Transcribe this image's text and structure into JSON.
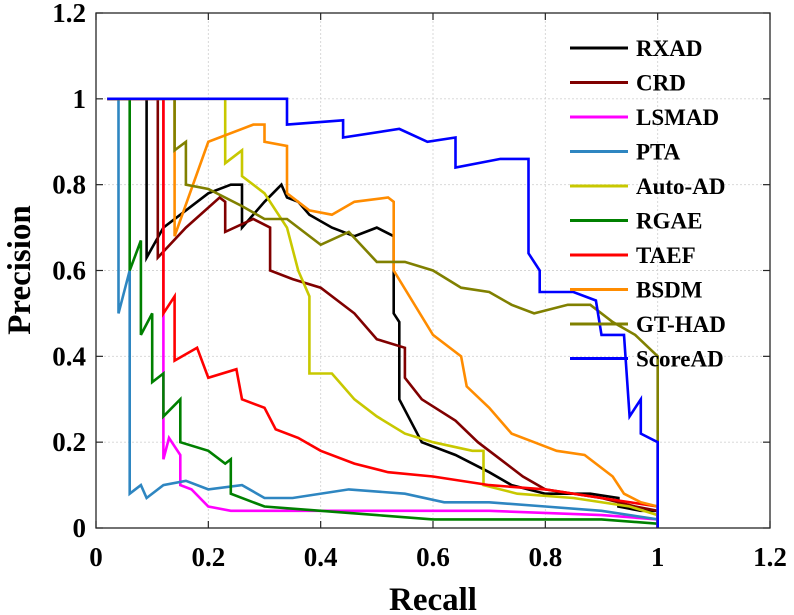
{
  "chart_data": {
    "type": "line",
    "title": "",
    "xlabel": "Recall",
    "ylabel": "Precision",
    "xlim": [
      0,
      1.2
    ],
    "ylim": [
      0,
      1.2
    ],
    "xticks": [
      "0",
      "0.2",
      "0.4",
      "0.6",
      "0.8",
      "1",
      "1.2"
    ],
    "yticks": [
      "0",
      "0.2",
      "0.4",
      "0.6",
      "0.8",
      "1",
      "1.2"
    ],
    "grid": true,
    "legend_position": "top-right",
    "series": [
      {
        "name": "RXAD",
        "color": "#000000",
        "points": [
          [
            0.02,
            1.0
          ],
          [
            0.09,
            1.0
          ],
          [
            0.09,
            0.63
          ],
          [
            0.12,
            0.7
          ],
          [
            0.2,
            0.78
          ],
          [
            0.24,
            0.8
          ],
          [
            0.26,
            0.8
          ],
          [
            0.26,
            0.7
          ],
          [
            0.3,
            0.76
          ],
          [
            0.33,
            0.8
          ],
          [
            0.34,
            0.77
          ],
          [
            0.36,
            0.76
          ],
          [
            0.38,
            0.73
          ],
          [
            0.42,
            0.7
          ],
          [
            0.46,
            0.68
          ],
          [
            0.5,
            0.7
          ],
          [
            0.53,
            0.68
          ],
          [
            0.53,
            0.5
          ],
          [
            0.54,
            0.48
          ],
          [
            0.54,
            0.3
          ],
          [
            0.56,
            0.25
          ],
          [
            0.58,
            0.2
          ],
          [
            0.64,
            0.17
          ],
          [
            0.7,
            0.13
          ],
          [
            0.74,
            0.1
          ],
          [
            0.8,
            0.08
          ],
          [
            0.88,
            0.08
          ],
          [
            0.93,
            0.07
          ],
          [
            0.93,
            0.05
          ],
          [
            0.97,
            0.04
          ],
          [
            1.0,
            0.04
          ],
          [
            1.0,
            0.0
          ]
        ]
      },
      {
        "name": "CRD",
        "color": "#800000",
        "points": [
          [
            0.02,
            1.0
          ],
          [
            0.11,
            1.0
          ],
          [
            0.11,
            0.63
          ],
          [
            0.16,
            0.7
          ],
          [
            0.22,
            0.77
          ],
          [
            0.23,
            0.76
          ],
          [
            0.23,
            0.69
          ],
          [
            0.28,
            0.72
          ],
          [
            0.31,
            0.7
          ],
          [
            0.31,
            0.6
          ],
          [
            0.35,
            0.58
          ],
          [
            0.4,
            0.56
          ],
          [
            0.46,
            0.5
          ],
          [
            0.5,
            0.44
          ],
          [
            0.55,
            0.42
          ],
          [
            0.55,
            0.35
          ],
          [
            0.58,
            0.3
          ],
          [
            0.64,
            0.25
          ],
          [
            0.68,
            0.2
          ],
          [
            0.72,
            0.16
          ],
          [
            0.76,
            0.12
          ],
          [
            0.8,
            0.09
          ],
          [
            0.9,
            0.07
          ],
          [
            0.96,
            0.05
          ],
          [
            1.0,
            0.04
          ],
          [
            1.0,
            0.0
          ]
        ]
      },
      {
        "name": "LSMAD",
        "color": "#ff00ff",
        "points": [
          [
            0.02,
            1.0
          ],
          [
            0.12,
            1.0
          ],
          [
            0.12,
            0.16
          ],
          [
            0.13,
            0.21
          ],
          [
            0.15,
            0.17
          ],
          [
            0.15,
            0.1
          ],
          [
            0.17,
            0.09
          ],
          [
            0.2,
            0.05
          ],
          [
            0.24,
            0.04
          ],
          [
            0.3,
            0.04
          ],
          [
            0.5,
            0.04
          ],
          [
            0.7,
            0.04
          ],
          [
            0.9,
            0.03
          ],
          [
            1.0,
            0.02
          ],
          [
            1.0,
            0.0
          ]
        ]
      },
      {
        "name": "PTA",
        "color": "#2e86c1",
        "points": [
          [
            0.02,
            1.0
          ],
          [
            0.04,
            1.0
          ],
          [
            0.04,
            0.5
          ],
          [
            0.06,
            0.6
          ],
          [
            0.06,
            0.08
          ],
          [
            0.08,
            0.1
          ],
          [
            0.09,
            0.07
          ],
          [
            0.12,
            0.1
          ],
          [
            0.16,
            0.11
          ],
          [
            0.2,
            0.09
          ],
          [
            0.26,
            0.1
          ],
          [
            0.3,
            0.07
          ],
          [
            0.35,
            0.07
          ],
          [
            0.45,
            0.09
          ],
          [
            0.55,
            0.08
          ],
          [
            0.62,
            0.06
          ],
          [
            0.7,
            0.06
          ],
          [
            0.8,
            0.05
          ],
          [
            0.9,
            0.04
          ],
          [
            1.0,
            0.02
          ],
          [
            1.0,
            0.0
          ]
        ]
      },
      {
        "name": "Auto-AD",
        "color": "#c8c800",
        "points": [
          [
            0.02,
            1.0
          ],
          [
            0.23,
            1.0
          ],
          [
            0.23,
            0.85
          ],
          [
            0.26,
            0.88
          ],
          [
            0.26,
            0.82
          ],
          [
            0.3,
            0.78
          ],
          [
            0.34,
            0.7
          ],
          [
            0.36,
            0.6
          ],
          [
            0.38,
            0.54
          ],
          [
            0.38,
            0.36
          ],
          [
            0.42,
            0.36
          ],
          [
            0.46,
            0.3
          ],
          [
            0.5,
            0.26
          ],
          [
            0.55,
            0.22
          ],
          [
            0.6,
            0.2
          ],
          [
            0.67,
            0.18
          ],
          [
            0.69,
            0.18
          ],
          [
            0.69,
            0.1
          ],
          [
            0.75,
            0.08
          ],
          [
            0.85,
            0.07
          ],
          [
            0.95,
            0.05
          ],
          [
            1.0,
            0.03
          ],
          [
            1.0,
            0.0
          ]
        ]
      },
      {
        "name": "RGAE",
        "color": "#008000",
        "points": [
          [
            0.02,
            1.0
          ],
          [
            0.06,
            1.0
          ],
          [
            0.06,
            0.6
          ],
          [
            0.08,
            0.67
          ],
          [
            0.08,
            0.45
          ],
          [
            0.1,
            0.5
          ],
          [
            0.1,
            0.34
          ],
          [
            0.12,
            0.36
          ],
          [
            0.12,
            0.26
          ],
          [
            0.15,
            0.3
          ],
          [
            0.15,
            0.2
          ],
          [
            0.2,
            0.18
          ],
          [
            0.23,
            0.15
          ],
          [
            0.24,
            0.16
          ],
          [
            0.24,
            0.08
          ],
          [
            0.28,
            0.06
          ],
          [
            0.3,
            0.05
          ],
          [
            0.4,
            0.04
          ],
          [
            0.5,
            0.03
          ],
          [
            0.6,
            0.02
          ],
          [
            0.8,
            0.02
          ],
          [
            0.9,
            0.02
          ],
          [
            1.0,
            0.01
          ],
          [
            1.0,
            0.0
          ]
        ]
      },
      {
        "name": "TAEF",
        "color": "#ff0000",
        "points": [
          [
            0.02,
            1.0
          ],
          [
            0.12,
            1.0
          ],
          [
            0.12,
            0.5
          ],
          [
            0.14,
            0.54
          ],
          [
            0.14,
            0.39
          ],
          [
            0.18,
            0.42
          ],
          [
            0.2,
            0.35
          ],
          [
            0.25,
            0.37
          ],
          [
            0.26,
            0.3
          ],
          [
            0.3,
            0.28
          ],
          [
            0.32,
            0.23
          ],
          [
            0.36,
            0.21
          ],
          [
            0.4,
            0.18
          ],
          [
            0.46,
            0.15
          ],
          [
            0.52,
            0.13
          ],
          [
            0.6,
            0.12
          ],
          [
            0.7,
            0.1
          ],
          [
            0.8,
            0.09
          ],
          [
            0.9,
            0.07
          ],
          [
            1.0,
            0.05
          ],
          [
            1.0,
            0.0
          ]
        ]
      },
      {
        "name": "BSDM",
        "color": "#ff8c00",
        "points": [
          [
            0.02,
            1.0
          ],
          [
            0.14,
            1.0
          ],
          [
            0.14,
            0.68
          ],
          [
            0.2,
            0.9
          ],
          [
            0.28,
            0.94
          ],
          [
            0.3,
            0.94
          ],
          [
            0.3,
            0.9
          ],
          [
            0.34,
            0.89
          ],
          [
            0.34,
            0.78
          ],
          [
            0.38,
            0.74
          ],
          [
            0.42,
            0.73
          ],
          [
            0.46,
            0.76
          ],
          [
            0.52,
            0.77
          ],
          [
            0.53,
            0.76
          ],
          [
            0.53,
            0.6
          ],
          [
            0.6,
            0.45
          ],
          [
            0.65,
            0.4
          ],
          [
            0.66,
            0.33
          ],
          [
            0.7,
            0.28
          ],
          [
            0.74,
            0.22
          ],
          [
            0.78,
            0.2
          ],
          [
            0.82,
            0.18
          ],
          [
            0.87,
            0.17
          ],
          [
            0.92,
            0.12
          ],
          [
            0.94,
            0.08
          ],
          [
            0.97,
            0.06
          ],
          [
            1.0,
            0.05
          ],
          [
            1.0,
            0.0
          ]
        ]
      },
      {
        "name": "GT-HAD",
        "color": "#808000",
        "points": [
          [
            0.02,
            1.0
          ],
          [
            0.14,
            1.0
          ],
          [
            0.14,
            0.88
          ],
          [
            0.16,
            0.9
          ],
          [
            0.16,
            0.8
          ],
          [
            0.2,
            0.79
          ],
          [
            0.26,
            0.75
          ],
          [
            0.3,
            0.72
          ],
          [
            0.34,
            0.72
          ],
          [
            0.4,
            0.66
          ],
          [
            0.45,
            0.69
          ],
          [
            0.5,
            0.62
          ],
          [
            0.55,
            0.62
          ],
          [
            0.6,
            0.6
          ],
          [
            0.65,
            0.56
          ],
          [
            0.7,
            0.55
          ],
          [
            0.74,
            0.52
          ],
          [
            0.78,
            0.5
          ],
          [
            0.84,
            0.52
          ],
          [
            0.88,
            0.52
          ],
          [
            0.92,
            0.48
          ],
          [
            0.96,
            0.45
          ],
          [
            1.0,
            0.4
          ],
          [
            1.0,
            0.2
          ],
          [
            1.0,
            0.0
          ]
        ]
      },
      {
        "name": "ScoreAD",
        "color": "#0000ff",
        "points": [
          [
            0.02,
            1.0
          ],
          [
            0.34,
            1.0
          ],
          [
            0.34,
            0.94
          ],
          [
            0.44,
            0.95
          ],
          [
            0.44,
            0.91
          ],
          [
            0.54,
            0.93
          ],
          [
            0.59,
            0.9
          ],
          [
            0.64,
            0.91
          ],
          [
            0.64,
            0.84
          ],
          [
            0.72,
            0.86
          ],
          [
            0.77,
            0.86
          ],
          [
            0.77,
            0.64
          ],
          [
            0.79,
            0.6
          ],
          [
            0.79,
            0.55
          ],
          [
            0.85,
            0.55
          ],
          [
            0.89,
            0.53
          ],
          [
            0.9,
            0.45
          ],
          [
            0.94,
            0.45
          ],
          [
            0.95,
            0.26
          ],
          [
            0.97,
            0.3
          ],
          [
            0.97,
            0.22
          ],
          [
            1.0,
            0.2
          ],
          [
            1.0,
            0.0
          ]
        ]
      }
    ]
  }
}
